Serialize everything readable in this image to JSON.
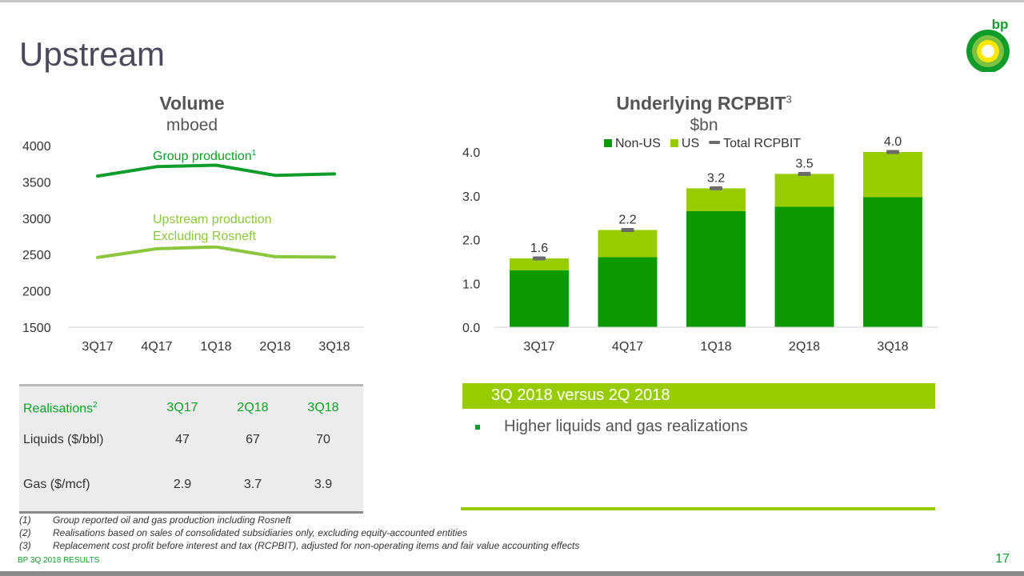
{
  "page": {
    "title": "Upstream",
    "footer_left": "BP 3Q 2018 RESULTS",
    "page_number": "17"
  },
  "logo": {
    "text": "bp",
    "icon": "helios-sunflower-icon"
  },
  "volume_chart": {
    "title": "Volume",
    "unit": "mboed",
    "series_label_1": "Group production",
    "series_label_1_sup": "1",
    "series_label_2_line1": "Upstream production",
    "series_label_2_line2": "Excluding Rosneft"
  },
  "rcpbit_chart": {
    "title": "Underlying RCPBIT",
    "title_sup": "3",
    "unit": "$bn"
  },
  "chart_data": [
    {
      "type": "line",
      "title": "Volume",
      "ylabel": "mboed",
      "categories": [
        "3Q17",
        "4Q17",
        "1Q18",
        "2Q18",
        "3Q18"
      ],
      "series": [
        {
          "name": "Group production",
          "values": [
            3580,
            3710,
            3730,
            3590,
            3610
          ],
          "color": "#109c2a"
        },
        {
          "name": "Upstream production Excluding Rosneft",
          "values": [
            2460,
            2580,
            2605,
            2470,
            2465
          ],
          "color": "#8cc63f"
        }
      ],
      "ylim": [
        1500,
        4000
      ],
      "yticks": [
        "1500",
        "2000",
        "2500",
        "3000",
        "3500",
        "4000"
      ],
      "grid": false
    },
    {
      "type": "bar",
      "stacked": true,
      "title": "Underlying RCPBIT",
      "ylabel": "$bn",
      "categories": [
        "3Q17",
        "4Q17",
        "1Q18",
        "2Q18",
        "3Q18"
      ],
      "series": [
        {
          "name": "Non-US",
          "values": [
            1.3,
            1.6,
            2.65,
            2.75,
            2.97
          ],
          "color": "#0a9a00"
        },
        {
          "name": "US",
          "values": [
            0.27,
            0.62,
            0.52,
            0.75,
            1.03
          ],
          "color": "#99cc00"
        }
      ],
      "totals": {
        "name": "Total RCPBIT",
        "values": [
          1.57,
          2.22,
          3.17,
          3.5,
          4.0
        ],
        "labels": [
          "1.6",
          "2.2",
          "3.2",
          "3.5",
          "4.0"
        ]
      },
      "ylim": [
        0,
        4.0
      ],
      "yticks": [
        "0.0",
        "1.0",
        "2.0",
        "3.0",
        "4.0"
      ],
      "legend": "top-right",
      "grid": false
    }
  ],
  "realisations": {
    "header": "Realisations",
    "header_sup": "2",
    "columns": [
      "3Q17",
      "2Q18",
      "3Q18"
    ],
    "rows": [
      {
        "label": "Liquids ($/bbl)",
        "values": [
          "47",
          "67",
          "70"
        ]
      },
      {
        "label": "Gas ($/mcf)",
        "values": [
          "2.9",
          "3.7",
          "3.9"
        ]
      }
    ]
  },
  "commentary": {
    "banner": "3Q 2018 versus 2Q 2018",
    "bullets": [
      "Higher liquids and gas realizations"
    ]
  },
  "footnotes": [
    {
      "num": "(1)",
      "text": "Group reported oil and gas production including Rosneft"
    },
    {
      "num": "(2)",
      "text": "Realisations based on sales of consolidated subsidiaries only, excluding equity-accounted entities"
    },
    {
      "num": "(3)",
      "text": "Replacement cost profit before interest and tax (RCPBIT), adjusted for non-operating items and fair value accounting effects"
    }
  ]
}
